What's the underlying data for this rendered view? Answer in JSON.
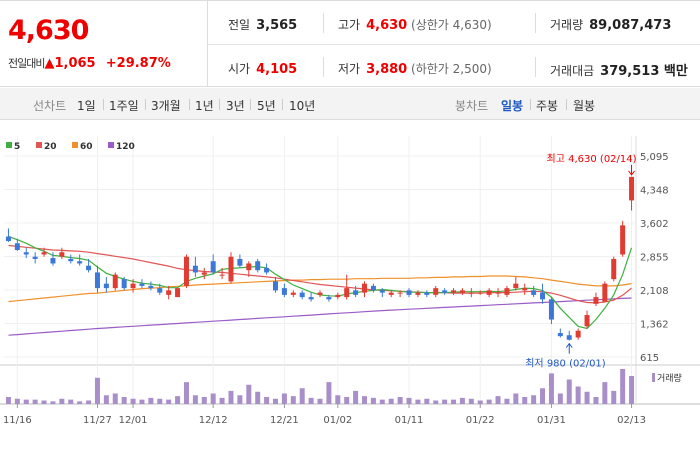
{
  "quote": {
    "price": "4,630",
    "change_label": "전일대비",
    "change_arrow": "▲",
    "change_value": "1,065",
    "change_pct": "+29.87%",
    "prev_label": "전일",
    "prev_value": "3,565",
    "high_label": "고가",
    "high_value": "4,630",
    "high_sub": "(상한가 4,630)",
    "volume_label": "거래량",
    "volume_value": "89,087,473",
    "open_label": "시가",
    "open_value": "4,105",
    "low_label": "저가",
    "low_value": "3,880",
    "low_sub": "(하한가 2,500)",
    "amount_label": "거래대금",
    "amount_value": "379,513 백만"
  },
  "toolbar": {
    "line_label": "선차트",
    "periods": [
      "1일",
      "1주일",
      "3개월",
      "1년",
      "3년",
      "5년",
      "10년"
    ],
    "candle_label": "봉차트",
    "candle_types": [
      "일봉",
      "주봉",
      "월봉"
    ],
    "active_candle": "일봉"
  },
  "colors": {
    "up": "#e03c31",
    "down": "#3b78d8",
    "ma5": "#3fb03f",
    "ma20": "#e05555",
    "ma60": "#f0902a",
    "ma120": "#9a5cc6",
    "volume": "#a98fca"
  },
  "chart_data": {
    "type": "candlestick",
    "legend": [
      {
        "name": "5",
        "color": "#3fb03f"
      },
      {
        "name": "20",
        "color": "#e05555"
      },
      {
        "name": "60",
        "color": "#f0902a"
      },
      {
        "name": "120",
        "color": "#9a5cc6"
      }
    ],
    "y_ticks": [
      "5,095",
      "4,348",
      "3,602",
      "2,855",
      "2,108",
      "1,362",
      "615"
    ],
    "y_tick_values": [
      5095,
      4348,
      3602,
      2855,
      2108,
      1362,
      615
    ],
    "ylim": [
      615,
      5095
    ],
    "x_ticks": [
      {
        "label": "11/16",
        "index": 1
      },
      {
        "label": "11/27",
        "index": 10
      },
      {
        "label": "12/01",
        "index": 14
      },
      {
        "label": "12/12",
        "index": 23
      },
      {
        "label": "12/21",
        "index": 31
      },
      {
        "label": "01/02",
        "index": 37
      },
      {
        "label": "01/11",
        "index": 45
      },
      {
        "label": "01/22",
        "index": 53
      },
      {
        "label": "01/31",
        "index": 61
      },
      {
        "label": "02/13",
        "index": 70
      }
    ],
    "max_annotation": "최고 4,630 (02/14)",
    "min_annotation": "최저 980 (02/01)",
    "volume_label": "거래량",
    "ohlc": [
      [
        3300,
        3480,
        3180,
        3200
      ],
      [
        3150,
        3250,
        2980,
        3000
      ],
      [
        2950,
        3050,
        2820,
        2900
      ],
      [
        2850,
        2950,
        2700,
        2800
      ],
      [
        2900,
        3050,
        2850,
        2950
      ],
      [
        2820,
        2950,
        2650,
        2700
      ],
      [
        2850,
        3050,
        2800,
        2950
      ],
      [
        2800,
        2900,
        2700,
        2750
      ],
      [
        2750,
        2900,
        2650,
        2700
      ],
      [
        2650,
        2800,
        2500,
        2550
      ],
      [
        2500,
        2650,
        2050,
        2150
      ],
      [
        2250,
        2400,
        2050,
        2150
      ],
      [
        2150,
        2500,
        2100,
        2450
      ],
      [
        2350,
        2400,
        2100,
        2150
      ],
      [
        2150,
        2350,
        2050,
        2250
      ],
      [
        2250,
        2350,
        2150,
        2200
      ],
      [
        2200,
        2300,
        2100,
        2150
      ],
      [
        2150,
        2250,
        2000,
        2050
      ],
      [
        2000,
        2200,
        1900,
        2100
      ],
      [
        1950,
        2150,
        1950,
        2150
      ],
      [
        2200,
        2900,
        2150,
        2850
      ],
      [
        2650,
        2850,
        2400,
        2500
      ],
      [
        2450,
        2600,
        2350,
        2500
      ],
      [
        2750,
        2900,
        2450,
        2500
      ],
      [
        2450,
        2600,
        2350,
        2450
      ],
      [
        2300,
        2950,
        2250,
        2850
      ],
      [
        2800,
        2900,
        2600,
        2650
      ],
      [
        2550,
        2750,
        2400,
        2700
      ],
      [
        2750,
        2800,
        2500,
        2550
      ],
      [
        2600,
        2700,
        2450,
        2500
      ],
      [
        2300,
        2400,
        2050,
        2100
      ],
      [
        2150,
        2250,
        1950,
        2000
      ],
      [
        2000,
        2100,
        1950,
        2050
      ],
      [
        2050,
        2100,
        1900,
        1950
      ],
      [
        1950,
        2050,
        1850,
        1900
      ],
      [
        2000,
        2100,
        1950,
        2050
      ],
      [
        1950,
        2000,
        1850,
        1900
      ],
      [
        1950,
        2050,
        1900,
        2000
      ],
      [
        1950,
        2450,
        1900,
        2150
      ],
      [
        2100,
        2200,
        1950,
        2000
      ],
      [
        2050,
        2300,
        1950,
        2250
      ],
      [
        2200,
        2250,
        2050,
        2100
      ],
      [
        2100,
        2150,
        1950,
        2050
      ],
      [
        2000,
        2100,
        1950,
        2050
      ],
      [
        2050,
        2100,
        1950,
        2050
      ],
      [
        2100,
        2150,
        1950,
        2000
      ],
      [
        2000,
        2100,
        1950,
        2050
      ],
      [
        2050,
        2100,
        1950,
        2000
      ],
      [
        2000,
        2200,
        1950,
        2150
      ],
      [
        2100,
        2150,
        2000,
        2050
      ],
      [
        2050,
        2150,
        2000,
        2100
      ],
      [
        2050,
        2150,
        2000,
        2100
      ],
      [
        2050,
        2150,
        1950,
        2050
      ],
      [
        2050,
        2100,
        2000,
        2050
      ],
      [
        2000,
        2150,
        1950,
        2100
      ],
      [
        2050,
        2150,
        1950,
        2050
      ],
      [
        2000,
        2200,
        1950,
        2150
      ],
      [
        2150,
        2400,
        2100,
        2250
      ],
      [
        2100,
        2250,
        2000,
        2150
      ],
      [
        2100,
        2200,
        1950,
        2000
      ],
      [
        2050,
        2250,
        1800,
        1900
      ],
      [
        1900,
        1950,
        1350,
        1450
      ],
      [
        1150,
        1250,
        1050,
        1080
      ],
      [
        1100,
        1200,
        980,
        1000
      ],
      [
        1050,
        1250,
        1000,
        1200
      ],
      [
        1300,
        1650,
        1250,
        1550
      ],
      [
        1800,
        2050,
        1750,
        1950
      ],
      [
        1850,
        2300,
        1850,
        2250
      ],
      [
        2350,
        2850,
        2300,
        2800
      ],
      [
        2900,
        3650,
        2850,
        3550
      ],
      [
        4105,
        4630,
        3880,
        4630
      ]
    ],
    "ma5": [
      3300,
      3230,
      3150,
      3050,
      2970,
      2880,
      2860,
      2830,
      2810,
      2770,
      2620,
      2480,
      2410,
      2350,
      2300,
      2260,
      2240,
      2210,
      2160,
      2160,
      2300,
      2370,
      2420,
      2470,
      2570,
      2590,
      2600,
      2620,
      2630,
      2600,
      2460,
      2340,
      2220,
      2140,
      2060,
      2000,
      1980,
      1970,
      2020,
      2050,
      2080,
      2100,
      2120,
      2100,
      2080,
      2060,
      2060,
      2050,
      2050,
      2050,
      2060,
      2070,
      2070,
      2070,
      2080,
      2070,
      2090,
      2120,
      2150,
      2140,
      2100,
      1950,
      1700,
      1500,
      1300,
      1250,
      1450,
      1700,
      2000,
      2450,
      3050
    ],
    "ma20": [
      3100,
      3080,
      3060,
      3040,
      3020,
      3000,
      2990,
      2980,
      2970,
      2950,
      2920,
      2890,
      2860,
      2830,
      2800,
      2760,
      2720,
      2680,
      2640,
      2590,
      2560,
      2540,
      2520,
      2510,
      2500,
      2480,
      2460,
      2440,
      2420,
      2400,
      2380,
      2350,
      2320,
      2290,
      2260,
      2230,
      2210,
      2190,
      2170,
      2150,
      2130,
      2110,
      2100,
      2090,
      2080,
      2070,
      2060,
      2050,
      2050,
      2050,
      2040,
      2040,
      2040,
      2040,
      2050,
      2050,
      2050,
      2060,
      2070,
      2080,
      2070,
      2040,
      1990,
      1930,
      1870,
      1830,
      1820,
      1840,
      1880,
      1990,
      2150
    ],
    "ma60": [
      1850,
      1870,
      1890,
      1910,
      1930,
      1950,
      1970,
      1990,
      2010,
      2030,
      2040,
      2060,
      2080,
      2100,
      2120,
      2140,
      2150,
      2160,
      2180,
      2190,
      2200,
      2220,
      2230,
      2240,
      2250,
      2260,
      2270,
      2280,
      2290,
      2300,
      2310,
      2320,
      2330,
      2330,
      2340,
      2340,
      2350,
      2350,
      2350,
      2360,
      2360,
      2360,
      2370,
      2370,
      2370,
      2370,
      2380,
      2380,
      2390,
      2390,
      2400,
      2400,
      2410,
      2410,
      2420,
      2420,
      2420,
      2410,
      2400,
      2380,
      2360,
      2330,
      2300,
      2270,
      2240,
      2220,
      2200,
      2200,
      2200,
      2220,
      2250
    ],
    "ma120": [
      1100,
      1115,
      1130,
      1145,
      1160,
      1175,
      1190,
      1205,
      1220,
      1235,
      1250,
      1262,
      1275,
      1288,
      1300,
      1312,
      1325,
      1338,
      1350,
      1362,
      1375,
      1388,
      1400,
      1412,
      1425,
      1438,
      1450,
      1462,
      1475,
      1488,
      1500,
      1512,
      1525,
      1538,
      1550,
      1562,
      1575,
      1588,
      1600,
      1612,
      1625,
      1638,
      1650,
      1660,
      1670,
      1680,
      1690,
      1700,
      1710,
      1720,
      1730,
      1740,
      1750,
      1760,
      1770,
      1780,
      1790,
      1800,
      1810,
      1820,
      1830,
      1840,
      1850,
      1860,
      1870,
      1880,
      1890,
      1900,
      1910,
      1920,
      1930
    ],
    "volume": [
      8,
      6,
      5,
      5,
      4,
      3,
      6,
      5,
      3,
      4,
      30,
      10,
      12,
      8,
      6,
      5,
      7,
      6,
      5,
      9,
      25,
      10,
      8,
      12,
      7,
      15,
      10,
      22,
      14,
      8,
      6,
      12,
      9,
      18,
      7,
      6,
      25,
      10,
      8,
      15,
      9,
      7,
      5,
      6,
      8,
      7,
      5,
      6,
      4,
      5,
      5,
      7,
      6,
      4,
      5,
      9,
      6,
      12,
      8,
      10,
      18,
      35,
      12,
      28,
      20,
      14,
      8,
      25,
      15,
      40,
      32
    ]
  }
}
